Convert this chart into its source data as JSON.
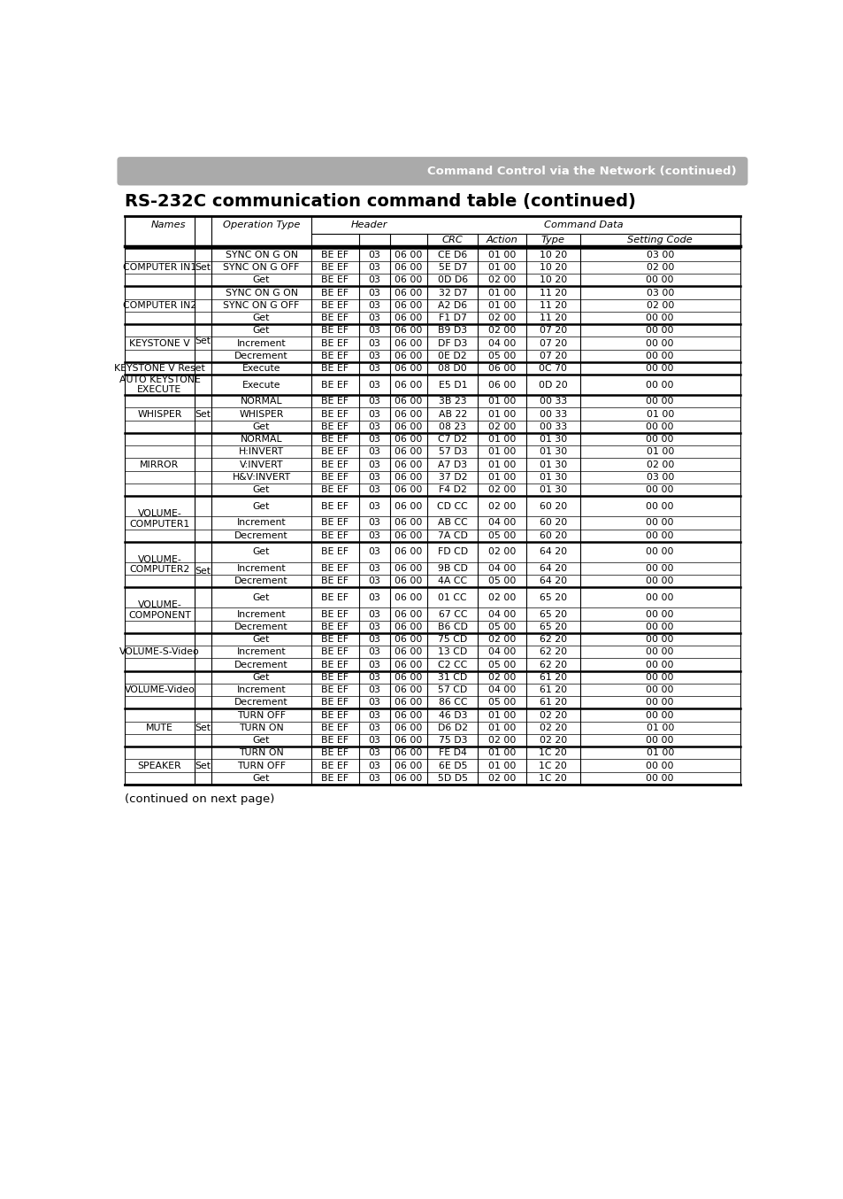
{
  "title": "RS-232C communication command table (continued)",
  "header_banner": "Command Control via the Network (continued)",
  "footer_text": "(continued on next page)",
  "bg_color": "#ffffff",
  "cell_font_size": 7.8,
  "header_font_size": 8.2,
  "rows": [
    [
      "COMPUTER IN1",
      "Set",
      "SYNC ON G ON",
      "BE EF",
      "03",
      "06 00",
      "CE D6",
      "01 00",
      "10 20",
      "03 00"
    ],
    [
      "",
      "",
      "SYNC ON G OFF",
      "BE EF",
      "03",
      "06 00",
      "5E D7",
      "01 00",
      "10 20",
      "02 00"
    ],
    [
      "",
      "",
      "Get",
      "BE EF",
      "03",
      "06 00",
      "0D D6",
      "02 00",
      "10 20",
      "00 00"
    ],
    [
      "COMPUTER IN2",
      "Set",
      "SYNC ON G ON",
      "BE EF",
      "03",
      "06 00",
      "32 D7",
      "01 00",
      "11 20",
      "03 00"
    ],
    [
      "",
      "",
      "SYNC ON G OFF",
      "BE EF",
      "03",
      "06 00",
      "A2 D6",
      "01 00",
      "11 20",
      "02 00"
    ],
    [
      "",
      "",
      "Get",
      "BE EF",
      "03",
      "06 00",
      "F1 D7",
      "02 00",
      "11 20",
      "00 00"
    ],
    [
      "KEYSTONE V",
      "",
      "Get",
      "BE EF",
      "03",
      "06 00",
      "B9 D3",
      "02 00",
      "07 20",
      "00 00"
    ],
    [
      "",
      "",
      "Increment",
      "BE EF",
      "03",
      "06 00",
      "DF D3",
      "04 00",
      "07 20",
      "00 00"
    ],
    [
      "",
      "",
      "Decrement",
      "BE EF",
      "03",
      "06 00",
      "0E D2",
      "05 00",
      "07 20",
      "00 00"
    ],
    [
      "KEYSTONE V Reset",
      "",
      "Execute",
      "BE EF",
      "03",
      "06 00",
      "08 D0",
      "06 00",
      "0C 70",
      "00 00"
    ],
    [
      "AUTO KEYSTONE\nEXECUTE",
      "",
      "Execute",
      "BE EF",
      "03",
      "06 00",
      "E5 D1",
      "06 00",
      "0D 20",
      "00 00"
    ],
    [
      "WHISPER",
      "Set",
      "NORMAL",
      "BE EF",
      "03",
      "06 00",
      "3B 23",
      "01 00",
      "00 33",
      "00 00"
    ],
    [
      "",
      "",
      "WHISPER",
      "BE EF",
      "03",
      "06 00",
      "AB 22",
      "01 00",
      "00 33",
      "01 00"
    ],
    [
      "",
      "",
      "Get",
      "BE EF",
      "03",
      "06 00",
      "08 23",
      "02 00",
      "00 33",
      "00 00"
    ],
    [
      "MIRROR",
      "Set",
      "NORMAL",
      "BE EF",
      "03",
      "06 00",
      "C7 D2",
      "01 00",
      "01 30",
      "00 00"
    ],
    [
      "",
      "",
      "H:INVERT",
      "BE EF",
      "03",
      "06 00",
      "57 D3",
      "01 00",
      "01 30",
      "01 00"
    ],
    [
      "",
      "",
      "V:INVERT",
      "BE EF",
      "03",
      "06 00",
      "A7 D3",
      "01 00",
      "01 30",
      "02 00"
    ],
    [
      "",
      "",
      "H&V:INVERT",
      "BE EF",
      "03",
      "06 00",
      "37 D2",
      "01 00",
      "01 30",
      "03 00"
    ],
    [
      "",
      "",
      "Get",
      "BE EF",
      "03",
      "06 00",
      "F4 D2",
      "02 00",
      "01 30",
      "00 00"
    ],
    [
      "VOLUME-\nCOMPUTER1",
      "",
      "Get",
      "BE EF",
      "03",
      "06 00",
      "CD CC",
      "02 00",
      "60 20",
      "00 00"
    ],
    [
      "",
      "",
      "Increment",
      "BE EF",
      "03",
      "06 00",
      "AB CC",
      "04 00",
      "60 20",
      "00 00"
    ],
    [
      "",
      "",
      "Decrement",
      "BE EF",
      "03",
      "06 00",
      "7A CD",
      "05 00",
      "60 20",
      "00 00"
    ],
    [
      "VOLUME-\nCOMPUTER2",
      "",
      "Get",
      "BE EF",
      "03",
      "06 00",
      "FD CD",
      "02 00",
      "64 20",
      "00 00"
    ],
    [
      "",
      "",
      "Increment",
      "BE EF",
      "03",
      "06 00",
      "9B CD",
      "04 00",
      "64 20",
      "00 00"
    ],
    [
      "",
      "",
      "Decrement",
      "BE EF",
      "03",
      "06 00",
      "4A CC",
      "05 00",
      "64 20",
      "00 00"
    ],
    [
      "VOLUME-\nCOMPONENT",
      "",
      "Get",
      "BE EF",
      "03",
      "06 00",
      "01 CC",
      "02 00",
      "65 20",
      "00 00"
    ],
    [
      "",
      "",
      "Increment",
      "BE EF",
      "03",
      "06 00",
      "67 CC",
      "04 00",
      "65 20",
      "00 00"
    ],
    [
      "",
      "",
      "Decrement",
      "BE EF",
      "03",
      "06 00",
      "B6 CD",
      "05 00",
      "65 20",
      "00 00"
    ],
    [
      "VOLUME-S-Video",
      "",
      "Get",
      "BE EF",
      "03",
      "06 00",
      "75 CD",
      "02 00",
      "62 20",
      "00 00"
    ],
    [
      "",
      "",
      "Increment",
      "BE EF",
      "03",
      "06 00",
      "13 CD",
      "04 00",
      "62 20",
      "00 00"
    ],
    [
      "",
      "",
      "Decrement",
      "BE EF",
      "03",
      "06 00",
      "C2 CC",
      "05 00",
      "62 20",
      "00 00"
    ],
    [
      "VOLUME-Video",
      "",
      "Get",
      "BE EF",
      "03",
      "06 00",
      "31 CD",
      "02 00",
      "61 20",
      "00 00"
    ],
    [
      "",
      "",
      "Increment",
      "BE EF",
      "03",
      "06 00",
      "57 CD",
      "04 00",
      "61 20",
      "00 00"
    ],
    [
      "",
      "",
      "Decrement",
      "BE EF",
      "03",
      "06 00",
      "86 CC",
      "05 00",
      "61 20",
      "00 00"
    ],
    [
      "MUTE",
      "Set",
      "TURN OFF",
      "BE EF",
      "03",
      "06 00",
      "46 D3",
      "01 00",
      "02 20",
      "00 00"
    ],
    [
      "",
      "",
      "TURN ON",
      "BE EF",
      "03",
      "06 00",
      "D6 D2",
      "01 00",
      "02 20",
      "01 00"
    ],
    [
      "",
      "",
      "Get",
      "BE EF",
      "03",
      "06 00",
      "75 D3",
      "02 00",
      "02 20",
      "00 00"
    ],
    [
      "SPEAKER",
      "Set",
      "TURN ON",
      "BE EF",
      "03",
      "06 00",
      "FE D4",
      "01 00",
      "1C 20",
      "01 00"
    ],
    [
      "",
      "",
      "TURN OFF",
      "BE EF",
      "03",
      "06 00",
      "6E D5",
      "01 00",
      "1C 20",
      "00 00"
    ],
    [
      "",
      "",
      "Get",
      "BE EF",
      "03",
      "06 00",
      "5D D5",
      "02 00",
      "1C 20",
      "00 00"
    ]
  ],
  "group_end_rows": [
    2,
    5,
    8,
    9,
    10,
    13,
    18,
    21,
    24,
    27,
    30,
    33,
    36,
    39
  ],
  "two_line_rows": [
    10,
    19,
    22,
    25
  ]
}
